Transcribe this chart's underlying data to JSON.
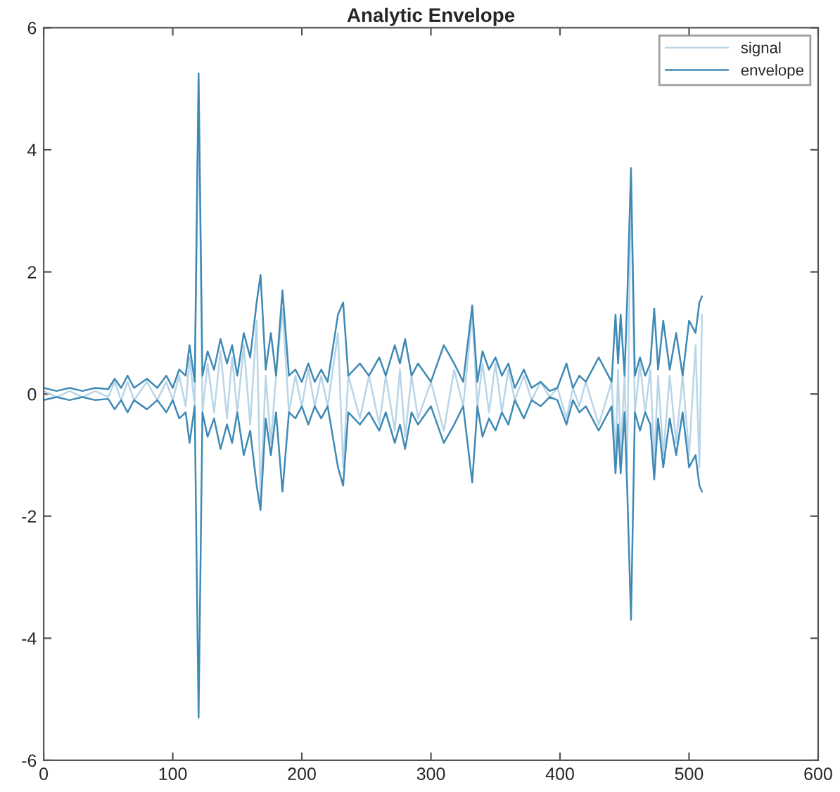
{
  "chart_data": {
    "type": "line",
    "title": "Analytic Envelope",
    "xlim": [
      0,
      600
    ],
    "xticks": [
      0,
      100,
      200,
      300,
      400,
      500,
      600
    ],
    "ylim": [
      -6,
      6
    ],
    "yticks": [
      -6,
      -4,
      -2,
      0,
      2,
      4,
      6
    ],
    "grid": false,
    "legend": "top right",
    "line_style": "solid",
    "marker": "none",
    "series": [
      {
        "name": "signal",
        "color": "#b9d5e8",
        "x": [
          0,
          10,
          20,
          30,
          40,
          50,
          55,
          60,
          65,
          70,
          80,
          88,
          95,
          100,
          105,
          110,
          113,
          117,
          120,
          123,
          127,
          132,
          137,
          142,
          146,
          150,
          155,
          160,
          165,
          168,
          172,
          176,
          180,
          185,
          190,
          195,
          200,
          205,
          210,
          215,
          220,
          228,
          232,
          236,
          245,
          252,
          260,
          265,
          272,
          276,
          280,
          285,
          290,
          300,
          310,
          318,
          325,
          332,
          336,
          340,
          345,
          350,
          355,
          360,
          365,
          372,
          378,
          385,
          392,
          398,
          405,
          410,
          415,
          420,
          430,
          440,
          443,
          445,
          447,
          450,
          452,
          455,
          458,
          462,
          466,
          470,
          473,
          476,
          480,
          485,
          490,
          495,
          500,
          505,
          508,
          510
        ],
        "values": [
          0.05,
          -0.05,
          0.05,
          -0.05,
          0.05,
          -0.05,
          0.2,
          -0.1,
          0.2,
          -0.1,
          0.2,
          -0.1,
          0.2,
          -0.1,
          0.3,
          -0.2,
          0.6,
          -0.2,
          5.1,
          -0.3,
          0.5,
          -0.3,
          0.7,
          -0.4,
          0.6,
          -0.3,
          0.8,
          -0.5,
          1.2,
          -1.7,
          0.3,
          -0.8,
          0.3,
          1.4,
          -0.3,
          0.3,
          -0.2,
          0.4,
          -0.2,
          0.3,
          -0.2,
          1.0,
          -1.2,
          0.3,
          -0.4,
          0.3,
          -0.5,
          0.3,
          -0.6,
          0.4,
          -0.7,
          0.3,
          -0.4,
          0.2,
          -0.6,
          0.4,
          -0.2,
          1.3,
          -0.2,
          0.5,
          -0.3,
          0.5,
          -0.3,
          0.4,
          -0.1,
          0.3,
          -0.1,
          0.2,
          -0.05,
          0.1,
          -0.4,
          0.1,
          -0.2,
          0.2,
          -0.5,
          0.2,
          -1.0,
          0.4,
          -1.0,
          0.3,
          -1.2,
          3.5,
          -0.3,
          0.5,
          -0.3,
          0.4,
          -1.1,
          0.3,
          -1.0,
          0.3,
          -0.8,
          0.3,
          -1.0,
          0.8,
          -1.2,
          1.3
        ]
      },
      {
        "name": "envelope",
        "color": "#3f8ab5",
        "x": [
          0,
          10,
          20,
          30,
          40,
          50,
          55,
          60,
          65,
          70,
          80,
          88,
          95,
          100,
          105,
          110,
          113,
          117,
          120,
          123,
          127,
          132,
          137,
          142,
          146,
          150,
          155,
          160,
          165,
          168,
          172,
          176,
          180,
          185,
          190,
          195,
          200,
          205,
          210,
          215,
          220,
          228,
          232,
          236,
          245,
          252,
          260,
          265,
          272,
          276,
          280,
          285,
          290,
          300,
          310,
          318,
          325,
          332,
          336,
          340,
          345,
          350,
          355,
          360,
          365,
          372,
          378,
          385,
          392,
          398,
          405,
          410,
          415,
          420,
          430,
          440,
          443,
          445,
          447,
          450,
          452,
          455,
          458,
          462,
          466,
          470,
          473,
          476,
          480,
          485,
          490,
          495,
          500,
          505,
          508,
          510
        ],
        "values": [
          0.1,
          0.05,
          0.1,
          0.05,
          0.1,
          0.08,
          0.25,
          0.1,
          0.3,
          0.1,
          0.25,
          0.1,
          0.3,
          0.1,
          0.4,
          0.3,
          0.8,
          0.2,
          5.25,
          0.3,
          0.7,
          0.4,
          0.9,
          0.5,
          0.8,
          0.3,
          1.0,
          0.6,
          1.5,
          1.95,
          0.4,
          1.0,
          0.3,
          1.7,
          0.3,
          0.4,
          0.2,
          0.5,
          0.2,
          0.4,
          0.2,
          1.3,
          1.5,
          0.3,
          0.5,
          0.3,
          0.6,
          0.3,
          0.8,
          0.5,
          0.9,
          0.3,
          0.5,
          0.2,
          0.8,
          0.5,
          0.2,
          1.45,
          0.2,
          0.7,
          0.4,
          0.6,
          0.3,
          0.5,
          0.1,
          0.4,
          0.1,
          0.2,
          0.05,
          0.1,
          0.5,
          0.1,
          0.3,
          0.2,
          0.6,
          0.2,
          1.3,
          0.5,
          1.3,
          0.3,
          1.5,
          3.7,
          0.3,
          0.6,
          0.3,
          0.5,
          1.4,
          0.4,
          1.2,
          0.4,
          1.0,
          0.3,
          1.2,
          1.0,
          1.5,
          1.6
        ]
      },
      {
        "color": "#3f8ab5",
        "x": [
          0,
          10,
          20,
          30,
          40,
          50,
          55,
          60,
          65,
          70,
          80,
          88,
          95,
          100,
          105,
          110,
          113,
          117,
          120,
          123,
          127,
          132,
          137,
          142,
          146,
          150,
          155,
          160,
          165,
          168,
          172,
          176,
          180,
          185,
          190,
          195,
          200,
          205,
          210,
          215,
          220,
          228,
          232,
          236,
          245,
          252,
          260,
          265,
          272,
          276,
          280,
          285,
          290,
          300,
          310,
          318,
          325,
          332,
          336,
          340,
          345,
          350,
          355,
          360,
          365,
          372,
          378,
          385,
          392,
          398,
          405,
          410,
          415,
          420,
          430,
          440,
          443,
          445,
          447,
          450,
          452,
          455,
          458,
          462,
          466,
          470,
          473,
          476,
          480,
          485,
          490,
          495,
          500,
          505,
          508,
          510
        ],
        "values": [
          -0.1,
          -0.05,
          -0.1,
          -0.05,
          -0.1,
          -0.08,
          -0.25,
          -0.1,
          -0.3,
          -0.1,
          -0.25,
          -0.1,
          -0.3,
          -0.1,
          -0.4,
          -0.3,
          -0.8,
          -0.2,
          -5.3,
          -0.3,
          -0.7,
          -0.4,
          -0.9,
          -0.5,
          -0.8,
          -0.3,
          -1.0,
          -0.6,
          -1.5,
          -1.9,
          -0.4,
          -1.0,
          -0.3,
          -1.6,
          -0.3,
          -0.4,
          -0.2,
          -0.5,
          -0.2,
          -0.4,
          -0.2,
          -1.2,
          -1.5,
          -0.3,
          -0.5,
          -0.3,
          -0.6,
          -0.3,
          -0.8,
          -0.5,
          -0.9,
          -0.3,
          -0.5,
          -0.2,
          -0.8,
          -0.5,
          -0.2,
          -1.45,
          -0.2,
          -0.7,
          -0.4,
          -0.6,
          -0.3,
          -0.5,
          -0.1,
          -0.4,
          -0.1,
          -0.2,
          -0.05,
          -0.1,
          -0.5,
          -0.1,
          -0.3,
          -0.2,
          -0.6,
          -0.2,
          -1.3,
          -0.5,
          -1.3,
          -0.3,
          -1.5,
          -3.7,
          -0.3,
          -0.6,
          -0.3,
          -0.5,
          -1.4,
          -0.4,
          -1.2,
          -0.4,
          -1.0,
          -0.3,
          -1.2,
          -1.0,
          -1.5,
          -1.6
        ]
      }
    ]
  }
}
